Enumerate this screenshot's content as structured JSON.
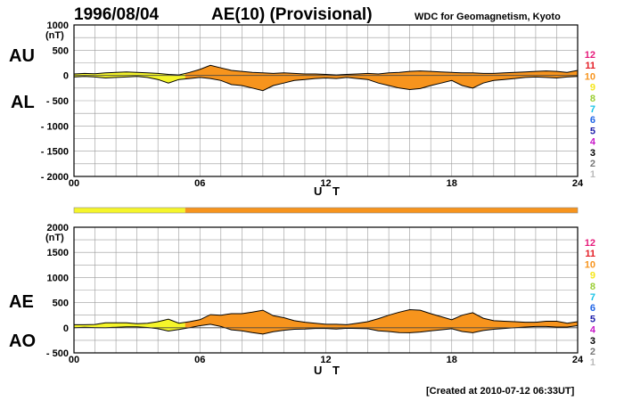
{
  "header": {
    "date": "1996/08/04",
    "title": "AE(10) (Provisional)",
    "source": "WDC for Geomagnetism, Kyoto"
  },
  "footer": {
    "created": "[Created at 2010-07-12 06:33UT]"
  },
  "colors": {
    "fill_main": "#F7941D",
    "fill_early": "#F5F52A",
    "grid": "#9a9a9a",
    "line": "#000000"
  },
  "legend": {
    "items": [
      {
        "label": "12",
        "color": "#E6197A"
      },
      {
        "label": "11",
        "color": "#E41E26"
      },
      {
        "label": "10",
        "color": "#F7941D"
      },
      {
        "label": "9",
        "color": "#F5E61A"
      },
      {
        "label": "8",
        "color": "#9ACD32"
      },
      {
        "label": "7",
        "color": "#19C3E6"
      },
      {
        "label": "6",
        "color": "#1E64E6"
      },
      {
        "label": "5",
        "color": "#1E1EAA"
      },
      {
        "label": "4",
        "color": "#C819C8"
      },
      {
        "label": "3",
        "color": "#000000"
      },
      {
        "label": "2",
        "color": "#777777"
      },
      {
        "label": "1",
        "color": "#BBBBBB"
      }
    ]
  },
  "chart_data": [
    {
      "type": "area",
      "panel": "AU/AL",
      "labels": {
        "upper": "AU",
        "lower": "AL",
        "unit": "(nT)",
        "xlabel": "U T"
      },
      "ylim": [
        -2000,
        1000
      ],
      "yticks": [
        1000,
        500,
        0,
        -500,
        -1000,
        -1500,
        -2000
      ],
      "ytick_labels": [
        "1000",
        "500",
        "0",
        "- 500",
        "- 1000",
        "- 1500",
        "- 2000"
      ],
      "xlim": [
        0,
        24
      ],
      "xticks": [
        0,
        6,
        12,
        18,
        24
      ],
      "xtick_labels": [
        "00",
        "06",
        "12",
        "18",
        "24"
      ],
      "grid": true,
      "x": [
        0,
        0.5,
        1,
        1.5,
        2,
        2.5,
        3,
        3.5,
        4,
        4.5,
        5,
        5.5,
        6,
        6.5,
        7,
        7.5,
        8,
        8.5,
        9,
        9.5,
        10,
        10.5,
        11,
        11.5,
        12,
        12.5,
        13,
        13.5,
        14,
        14.5,
        15,
        15.5,
        16,
        16.5,
        17,
        17.5,
        18,
        18.5,
        19,
        19.5,
        20,
        20.5,
        21,
        21.5,
        22,
        22.5,
        23,
        23.5,
        24
      ],
      "series": [
        {
          "name": "AU",
          "values": [
            30,
            40,
            35,
            50,
            60,
            70,
            60,
            50,
            40,
            20,
            10,
            60,
            120,
            200,
            150,
            100,
            80,
            60,
            50,
            40,
            50,
            40,
            30,
            30,
            20,
            10,
            20,
            30,
            40,
            30,
            50,
            60,
            80,
            90,
            80,
            70,
            60,
            50,
            50,
            40,
            40,
            50,
            60,
            70,
            80,
            90,
            80,
            60,
            100
          ]
        },
        {
          "name": "AL",
          "values": [
            -30,
            -20,
            -30,
            -50,
            -40,
            -30,
            -20,
            -40,
            -80,
            -150,
            -80,
            -60,
            -40,
            -60,
            -100,
            -180,
            -200,
            -250,
            -300,
            -200,
            -150,
            -100,
            -80,
            -60,
            -50,
            -60,
            -40,
            -60,
            -80,
            -150,
            -200,
            -250,
            -280,
            -260,
            -200,
            -150,
            -100,
            -200,
            -250,
            -150,
            -100,
            -80,
            -60,
            -40,
            -30,
            -40,
            -50,
            -30,
            -20
          ]
        }
      ]
    },
    {
      "type": "area",
      "panel": "AE/AO",
      "labels": {
        "upper": "AE",
        "lower": "AO",
        "unit": "(nT)",
        "xlabel": "U T"
      },
      "ylim": [
        -500,
        2000
      ],
      "yticks": [
        2000,
        1500,
        1000,
        500,
        0,
        -500
      ],
      "ytick_labels": [
        "2000",
        "1500",
        "1000",
        "500",
        "0",
        "- 500"
      ],
      "xlim": [
        0,
        24
      ],
      "xticks": [
        0,
        6,
        12,
        18,
        24
      ],
      "xtick_labels": [
        "00",
        "06",
        "12",
        "18",
        "24"
      ],
      "grid": true,
      "x": [
        0,
        0.5,
        1,
        1.5,
        2,
        2.5,
        3,
        3.5,
        4,
        4.5,
        5,
        5.5,
        6,
        6.5,
        7,
        7.5,
        8,
        8.5,
        9,
        9.5,
        10,
        10.5,
        11,
        11.5,
        12,
        12.5,
        13,
        13.5,
        14,
        14.5,
        15,
        15.5,
        16,
        16.5,
        17,
        17.5,
        18,
        18.5,
        19,
        19.5,
        20,
        20.5,
        21,
        21.5,
        22,
        22.5,
        23,
        23.5,
        24
      ],
      "series": [
        {
          "name": "AE",
          "values": [
            60,
            60,
            65,
            100,
            100,
            100,
            80,
            90,
            120,
            170,
            90,
            120,
            160,
            260,
            250,
            280,
            280,
            310,
            350,
            240,
            200,
            140,
            110,
            90,
            70,
            70,
            60,
            90,
            120,
            180,
            250,
            310,
            360,
            350,
            280,
            220,
            160,
            250,
            300,
            190,
            140,
            130,
            120,
            110,
            110,
            130,
            130,
            90,
            120
          ]
        },
        {
          "name": "AO",
          "values": [
            0,
            10,
            3,
            0,
            10,
            20,
            20,
            5,
            -20,
            -65,
            -35,
            0,
            40,
            70,
            25,
            -40,
            -60,
            -95,
            -125,
            -80,
            -50,
            -30,
            -25,
            -15,
            -15,
            -25,
            -10,
            -15,
            -20,
            -60,
            -75,
            -95,
            -100,
            -85,
            -60,
            -40,
            -20,
            -75,
            -100,
            -55,
            -30,
            -15,
            0,
            15,
            25,
            25,
            15,
            15,
            40
          ]
        }
      ]
    }
  ]
}
